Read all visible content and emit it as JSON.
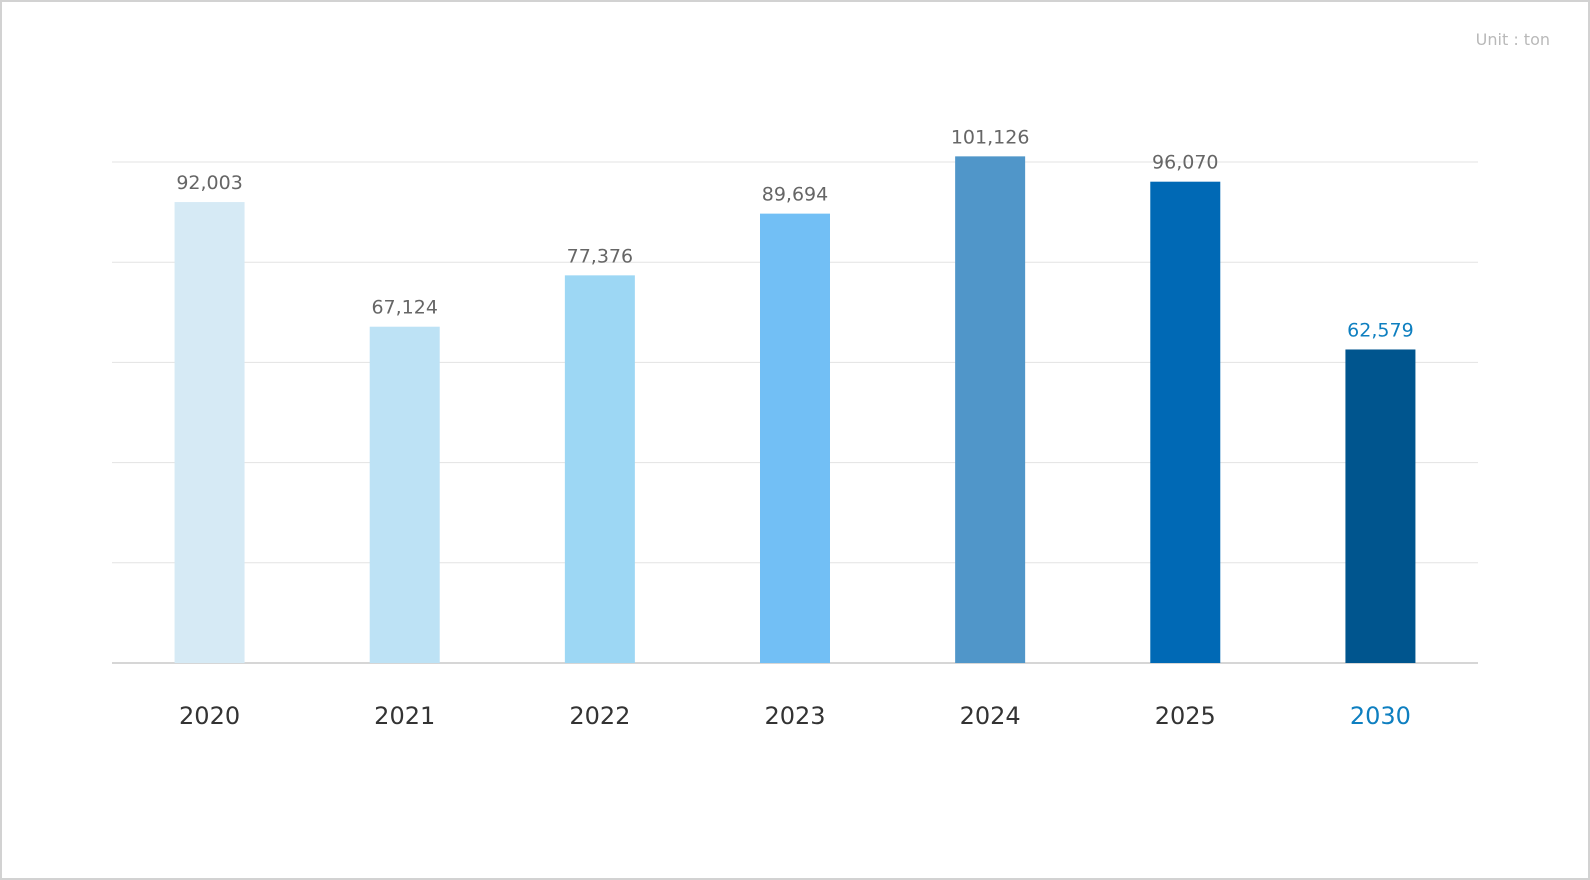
{
  "unit_label": "Unit : ton",
  "chart_data": {
    "type": "bar",
    "title": "",
    "xlabel": "",
    "ylabel": "",
    "unit": "Unit : ton",
    "categories": [
      "2020",
      "2021",
      "2022",
      "2023",
      "2024",
      "2025",
      "2030"
    ],
    "values": [
      92003,
      67124,
      77376,
      89694,
      101126,
      96070,
      62579
    ],
    "value_labels": [
      "92,003",
      "67,124",
      "77,376",
      "89,694",
      "101,126",
      "96,070",
      "62,579"
    ],
    "ylim": [
      0,
      100000
    ],
    "grid": true,
    "legend": "none",
    "highlight_index": 6,
    "colors": {
      "bars": [
        "#d6eaf5",
        "#bde2f5",
        "#9dd7f4",
        "#72bff5",
        "#5096c9",
        "#0069b5",
        "#00558e"
      ],
      "label": "#666666",
      "tick": "#333333",
      "highlight_text": "#0e7fc0",
      "grid": "#e3e3e3",
      "axis": "#bdbdbd"
    }
  }
}
